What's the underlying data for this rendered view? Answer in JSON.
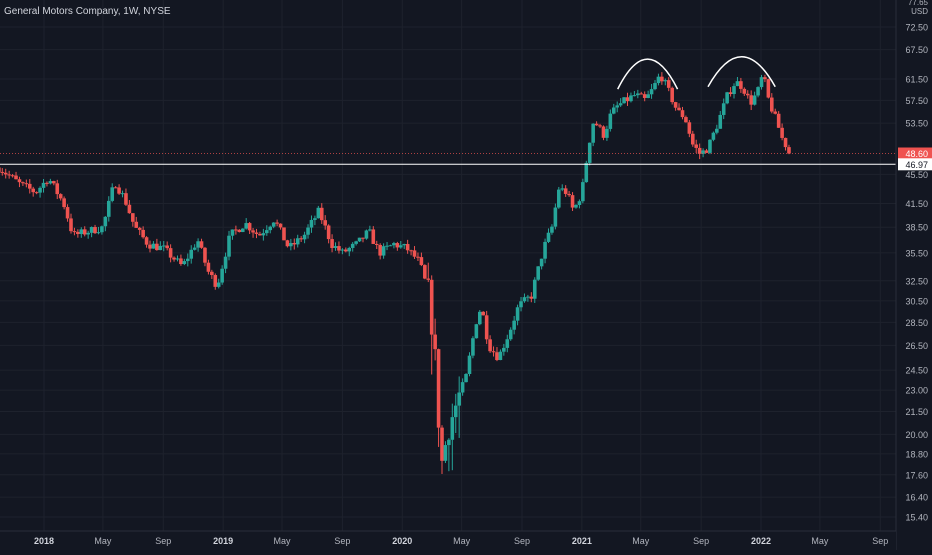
{
  "legend": {
    "symbol": "General Motors Company, 1W, NYSE"
  },
  "colors": {
    "background": "#131722",
    "grid": "#1e222d",
    "up": "#26a69a",
    "down": "#ef5350",
    "text": "#b2b5be",
    "level_line": "#ffffff",
    "last_price_tag": "#ef5350"
  },
  "chart_data": {
    "type": "candlestick",
    "scale": "log",
    "price_unit": "USD",
    "ylim": [
      14.8,
      80
    ],
    "y_ticks": [
      15.4,
      16.4,
      17.6,
      18.8,
      20.0,
      21.5,
      23.0,
      24.5,
      26.5,
      28.5,
      30.5,
      32.5,
      35.5,
      38.5,
      41.5,
      45.5,
      53.5,
      57.5,
      61.5,
      67.5,
      72.5
    ],
    "top_tick_partial": "77.65",
    "x_ticks": [
      "2018",
      "May",
      "Sep",
      "2019",
      "May",
      "Sep",
      "2020",
      "May",
      "Sep",
      "2021",
      "May",
      "Sep",
      "2022",
      "May",
      "Sep"
    ],
    "x_tick_dates": [
      "2018-01-01",
      "2018-05-01",
      "2018-09-01",
      "2019-01-01",
      "2019-05-01",
      "2019-09-01",
      "2020-01-01",
      "2020-05-01",
      "2020-09-01",
      "2021-01-01",
      "2021-05-01",
      "2021-09-01",
      "2022-01-01",
      "2022-05-01",
      "2022-09-01"
    ],
    "horizontal_level": {
      "value": 46.97,
      "label": "46.97"
    },
    "last_price": {
      "value": 48.6,
      "label": "48.60"
    },
    "annotations": [
      {
        "type": "arc",
        "label": "",
        "from": "2021-03-15",
        "to": "2021-07-15",
        "peak": 65.5
      },
      {
        "type": "arc",
        "label": "",
        "from": "2021-09-15",
        "to": "2022-01-30",
        "peak": 66.0
      }
    ],
    "series": [
      {
        "close_path": [
          [
            "2017-10-01",
            46.5
          ],
          [
            "2017-11-15",
            44.0
          ],
          [
            "2017-12-15",
            43.0
          ],
          [
            "2018-01-10",
            45.0
          ],
          [
            "2018-02-10",
            41.5
          ],
          [
            "2018-03-01",
            37.5
          ],
          [
            "2018-04-01",
            38.0
          ],
          [
            "2018-05-01",
            38.5
          ],
          [
            "2018-05-25",
            44.5
          ],
          [
            "2018-06-15",
            42.0
          ],
          [
            "2018-07-05",
            38.5
          ],
          [
            "2018-08-01",
            36.5
          ],
          [
            "2018-09-01",
            36.0
          ],
          [
            "2018-10-10",
            34.0
          ],
          [
            "2018-11-10",
            37.0
          ],
          [
            "2018-12-01",
            33.5
          ],
          [
            "2018-12-20",
            32.0
          ],
          [
            "2019-01-15",
            37.5
          ],
          [
            "2019-02-15",
            39.0
          ],
          [
            "2019-03-15",
            37.5
          ],
          [
            "2019-04-15",
            39.5
          ],
          [
            "2019-05-15",
            36.0
          ],
          [
            "2019-06-15",
            37.5
          ],
          [
            "2019-07-15",
            40.5
          ],
          [
            "2019-08-10",
            36.5
          ],
          [
            "2019-09-01",
            35.5
          ],
          [
            "2019-10-01",
            36.5
          ],
          [
            "2019-10-25",
            38.0
          ],
          [
            "2019-11-15",
            35.5
          ],
          [
            "2019-12-15",
            36.5
          ],
          [
            "2020-01-10",
            36.0
          ],
          [
            "2020-02-05",
            34.5
          ],
          [
            "2020-02-25",
            31.0
          ],
          [
            "2020-03-10",
            24.5
          ],
          [
            "2020-03-20",
            18.0
          ],
          [
            "2020-04-05",
            20.5
          ],
          [
            "2020-04-25",
            22.5
          ],
          [
            "2020-05-10",
            24.0
          ],
          [
            "2020-05-30",
            28.5
          ],
          [
            "2020-06-10",
            30.0
          ],
          [
            "2020-06-25",
            26.5
          ],
          [
            "2020-07-15",
            25.5
          ],
          [
            "2020-08-05",
            27.5
          ],
          [
            "2020-08-25",
            30.0
          ],
          [
            "2020-09-20",
            31.0
          ],
          [
            "2020-10-15",
            36.0
          ],
          [
            "2020-11-01",
            38.5
          ],
          [
            "2020-11-15",
            43.5
          ],
          [
            "2020-12-01",
            43.0
          ],
          [
            "2020-12-15",
            40.5
          ],
          [
            "2021-01-01",
            43.0
          ],
          [
            "2021-01-15",
            50.0
          ],
          [
            "2021-01-25",
            54.0
          ],
          [
            "2021-02-15",
            51.5
          ],
          [
            "2021-03-01",
            55.0
          ],
          [
            "2021-03-15",
            56.5
          ],
          [
            "2021-04-01",
            57.5
          ],
          [
            "2021-04-20",
            58.5
          ],
          [
            "2021-05-10",
            57.5
          ],
          [
            "2021-05-25",
            59.5
          ],
          [
            "2021-06-10",
            62.5
          ],
          [
            "2021-06-25",
            59.5
          ],
          [
            "2021-07-15",
            55.5
          ],
          [
            "2021-07-30",
            54.5
          ],
          [
            "2021-08-15",
            50.0
          ],
          [
            "2021-08-30",
            48.5
          ],
          [
            "2021-09-15",
            49.5
          ],
          [
            "2021-10-05",
            53.5
          ],
          [
            "2021-10-25",
            58.5
          ],
          [
            "2021-11-10",
            61.0
          ],
          [
            "2021-11-25",
            60.0
          ],
          [
            "2021-12-10",
            57.0
          ],
          [
            "2021-12-25",
            59.0
          ],
          [
            "2022-01-05",
            62.5
          ],
          [
            "2022-01-15",
            58.0
          ],
          [
            "2022-01-25",
            55.5
          ],
          [
            "2022-02-05",
            53.0
          ],
          [
            "2022-02-15",
            50.5
          ],
          [
            "2022-02-25",
            49.5
          ],
          [
            "2022-03-05",
            48.6
          ]
        ]
      }
    ]
  }
}
